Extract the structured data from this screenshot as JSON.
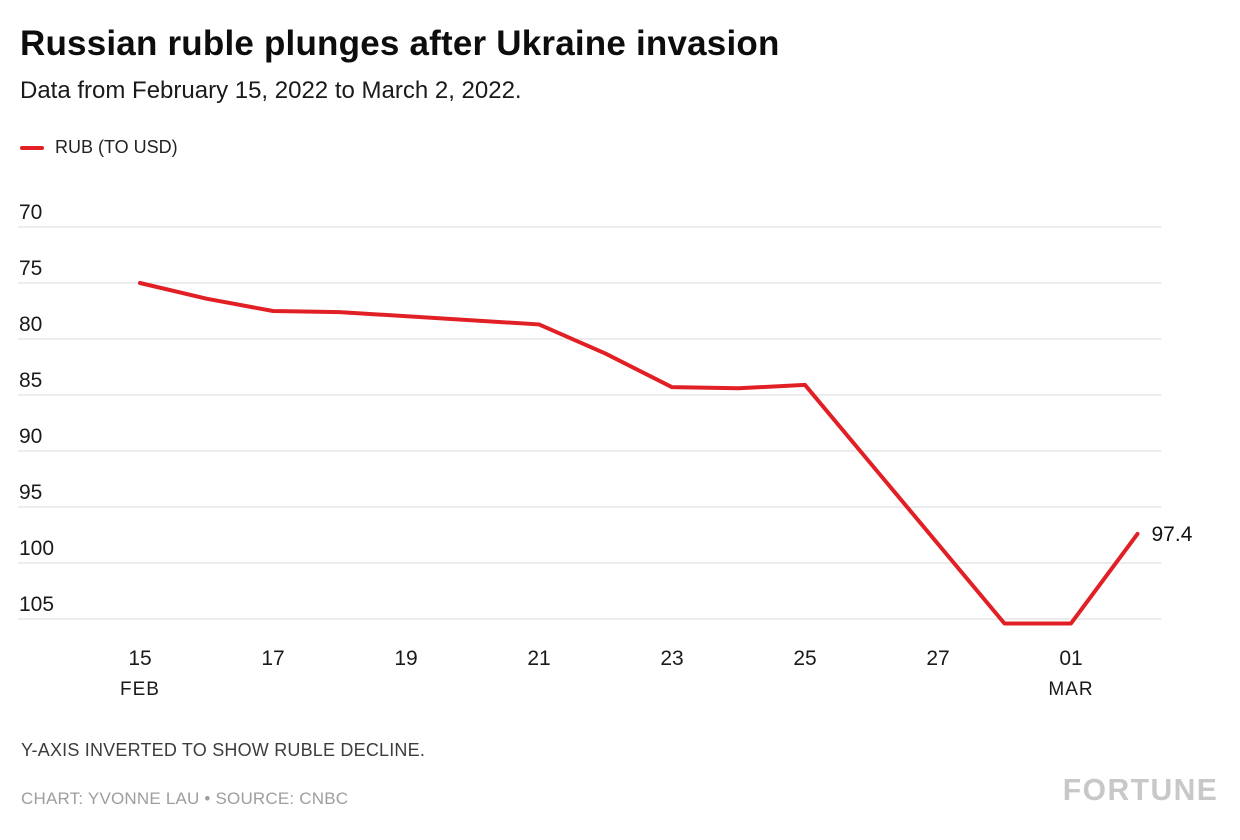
{
  "header": {
    "title": "Russian ruble plunges after Ukraine invasion",
    "subtitle": "Data from February 15, 2022 to March 2, 2022."
  },
  "legend": {
    "label": "RUB (TO USD)",
    "color": "#e12026"
  },
  "chart_data": {
    "type": "line",
    "title": "Russian ruble plunges after Ukraine invasion",
    "subtitle": "Data from February 15, 2022 to March 2, 2022.",
    "y_inverted": true,
    "grid": true,
    "y_ticks": [
      70,
      75,
      80,
      85,
      90,
      95,
      100,
      105
    ],
    "y_domain": [
      70,
      106.6
    ],
    "x_ticks": [
      {
        "day": 0,
        "label": "15",
        "sublabel": "FEB"
      },
      {
        "day": 2,
        "label": "17",
        "sublabel": ""
      },
      {
        "day": 4,
        "label": "19",
        "sublabel": ""
      },
      {
        "day": 6,
        "label": "21",
        "sublabel": ""
      },
      {
        "day": 8,
        "label": "23",
        "sublabel": ""
      },
      {
        "day": 10,
        "label": "25",
        "sublabel": ""
      },
      {
        "day": 12,
        "label": "27",
        "sublabel": ""
      },
      {
        "day": 14,
        "label": "01",
        "sublabel": "MAR"
      }
    ],
    "series": [
      {
        "name": "RUB (TO USD)",
        "color": "#e12026",
        "points": [
          {
            "day": 0,
            "date": "Feb 15",
            "value": 75.0
          },
          {
            "day": 1,
            "date": "Feb 16",
            "value": 76.4
          },
          {
            "day": 2,
            "date": "Feb 17",
            "value": 77.5
          },
          {
            "day": 3,
            "date": "Feb 18",
            "value": 77.6
          },
          {
            "day": 6,
            "date": "Feb 21",
            "value": 78.7
          },
          {
            "day": 7,
            "date": "Feb 22",
            "value": 81.3
          },
          {
            "day": 8,
            "date": "Feb 23",
            "value": 84.3
          },
          {
            "day": 9,
            "date": "Feb 24",
            "value": 84.4
          },
          {
            "day": 10,
            "date": "Feb 25",
            "value": 84.1
          },
          {
            "day": 13,
            "date": "Feb 28",
            "value": 105.4
          },
          {
            "day": 14,
            "date": "Mar 1",
            "value": 105.4
          },
          {
            "day": 15,
            "date": "Mar 2",
            "value": 97.4
          }
        ]
      }
    ],
    "end_label": "97.4"
  },
  "footer": {
    "note": "Y-AXIS INVERTED TO SHOW RUBLE DECLINE.",
    "credit": "CHART: YVONNE LAU • SOURCE: CNBC",
    "brand": "FORTUNE"
  }
}
